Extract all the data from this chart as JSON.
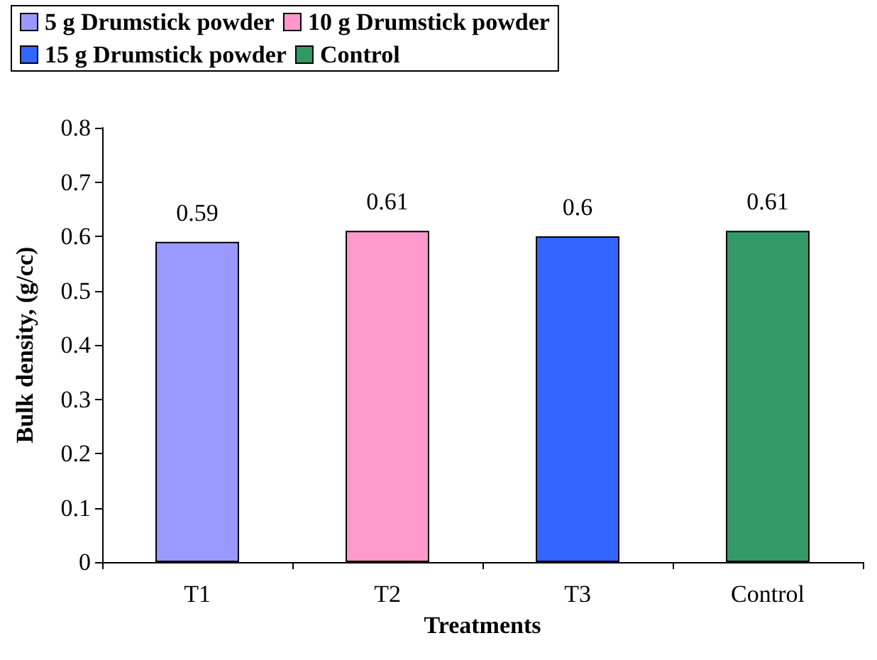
{
  "chart_data": {
    "type": "bar",
    "xlabel": "Treatments",
    "ylabel": "Bulk density, (g/cc)",
    "categories": [
      "T1",
      "T2",
      "T3",
      "Control"
    ],
    "series": [
      {
        "name": "5 g Drumstick powder",
        "color": "#9999ff",
        "values": [
          0.59,
          null,
          null,
          null
        ]
      },
      {
        "name": "10 g Drumstick powder",
        "color": "#ff99cc",
        "values": [
          null,
          0.61,
          null,
          null
        ]
      },
      {
        "name": "15 g Drumstick powder",
        "color": "#3366ff",
        "values": [
          null,
          null,
          0.6,
          null
        ]
      },
      {
        "name": "Control",
        "color": "#339966",
        "values": [
          null,
          null,
          null,
          0.61
        ]
      }
    ],
    "ylim": [
      0,
      0.8
    ],
    "yticks": [
      0,
      0.1,
      0.2,
      0.3,
      0.4,
      0.5,
      0.6,
      0.7,
      0.8
    ],
    "data_labels": true,
    "grid": false,
    "legend": "top"
  }
}
